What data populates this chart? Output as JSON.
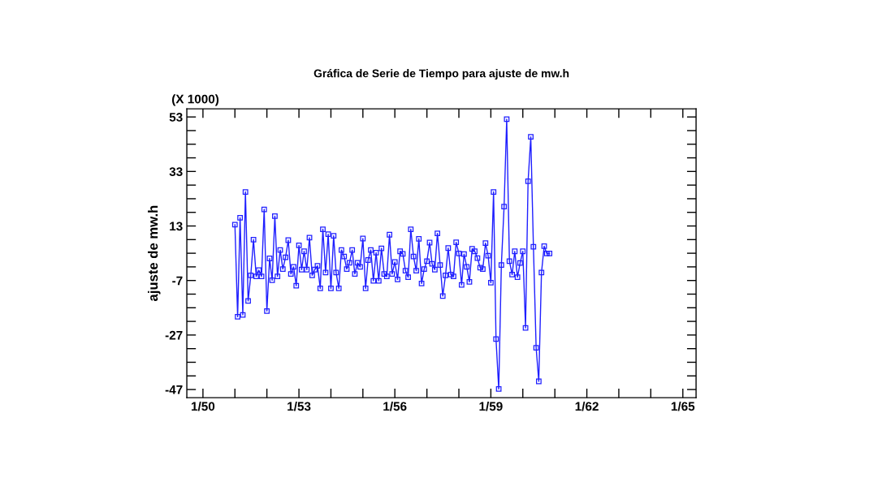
{
  "chart_data": {
    "type": "line",
    "title": "Gráfica de Serie de Tiempo para ajuste de mw.h",
    "ylabel": "ajuste de mw.h",
    "annotations": [
      "(X 1000)"
    ],
    "x": [
      "1951-01",
      "1951-02",
      "1951-03",
      "1951-04",
      "1951-05",
      "1951-06",
      "1951-07",
      "1951-08",
      "1951-09",
      "1951-10",
      "1951-11",
      "1951-12",
      "1952-01",
      "1952-02",
      "1952-03",
      "1952-04",
      "1952-05",
      "1952-06",
      "1952-07",
      "1952-08",
      "1952-09",
      "1952-10",
      "1952-11",
      "1952-12",
      "1953-01",
      "1953-02",
      "1953-03",
      "1953-04",
      "1953-05",
      "1953-06",
      "1953-07",
      "1953-08",
      "1953-09",
      "1953-10",
      "1953-11",
      "1953-12",
      "1954-01",
      "1954-02",
      "1954-03",
      "1954-04",
      "1954-05",
      "1954-06",
      "1954-07",
      "1954-08",
      "1954-09",
      "1954-10",
      "1954-11",
      "1954-12",
      "1955-01",
      "1955-02",
      "1955-03",
      "1955-04",
      "1955-05",
      "1955-06",
      "1955-07",
      "1955-08",
      "1955-09",
      "1955-10",
      "1955-11",
      "1955-12",
      "1956-01",
      "1956-02",
      "1956-03",
      "1956-04",
      "1956-05",
      "1956-06",
      "1956-07",
      "1956-08",
      "1956-09",
      "1956-10",
      "1956-11",
      "1956-12",
      "1957-01",
      "1957-02",
      "1957-03",
      "1957-04",
      "1957-05",
      "1957-06",
      "1957-07",
      "1957-08",
      "1957-09",
      "1957-10",
      "1957-11",
      "1957-12",
      "1958-01",
      "1958-02",
      "1958-03",
      "1958-04",
      "1958-05",
      "1958-06",
      "1958-07",
      "1958-08",
      "1958-09",
      "1958-10",
      "1958-11",
      "1958-12",
      "1959-01",
      "1959-02",
      "1959-03",
      "1959-04",
      "1959-05",
      "1959-06",
      "1959-07",
      "1959-08",
      "1959-09",
      "1959-10",
      "1959-11",
      "1959-12",
      "1960-01",
      "1960-02",
      "1960-03",
      "1960-04",
      "1960-05",
      "1960-06",
      "1960-07",
      "1960-08",
      "1960-09",
      "1960-10",
      "1960-11"
    ],
    "series": [
      {
        "color": "#1f1fff",
        "values": [
          13.5,
          -20.3,
          16,
          -19.6,
          25.5,
          -14.5,
          -5.1,
          8,
          -5.5,
          -3.2,
          -5.5,
          19.1,
          -18.2,
          1.1,
          -6.9,
          16.6,
          -5.5,
          4.2,
          -2.8,
          1.5,
          7.8,
          -4.6,
          -2,
          -8.9,
          5.9,
          -3,
          3.7,
          -3,
          8.7,
          -5.1,
          -3,
          -1.6,
          -9.9,
          11.8,
          -4.1,
          10,
          -9.9,
          9.4,
          -4.1,
          -9.9,
          4.2,
          1.8,
          -2.8,
          -0.5,
          4.2,
          -4.6,
          -0.5,
          -2,
          8.4,
          -9.9,
          0.5,
          4.2,
          -7.1,
          3.2,
          -7.1,
          4.8,
          -4.6,
          -5.5,
          9.8,
          -4.6,
          -0.2,
          -6.6,
          3.7,
          2.8,
          -3.4,
          -5.8,
          11.8,
          1.8,
          -3.4,
          8.3,
          -8.1,
          -2.8,
          0.1,
          6.9,
          -0.9,
          -3,
          10.3,
          -1.3,
          -12.7,
          -5.1,
          4.9,
          -4.8,
          -5.5,
          7,
          2.9,
          -8.6,
          2.7,
          -2,
          -7.5,
          4.6,
          3.7,
          1.2,
          -2.3,
          -2.8,
          6.7,
          2.1,
          -7.8,
          25.5,
          -28.5,
          -46.8,
          -1.3,
          20.1,
          52.2,
          0.1,
          -4.8,
          3.7,
          -5.8,
          -0.6,
          3.7,
          -24.4,
          29.4,
          45.7,
          5.4,
          -31.7,
          -44,
          -4.1,
          5.6,
          2.9,
          2.9
        ]
      }
    ],
    "marker": "square",
    "line_style": "solid",
    "xlim": [
      "1949-07",
      "1965-06"
    ],
    "xticks": [
      {
        "value": "1950-01",
        "label": "1/50"
      },
      {
        "value": "1951-01",
        "label": null
      },
      {
        "value": "1952-01",
        "label": null
      },
      {
        "value": "1953-01",
        "label": "1/53"
      },
      {
        "value": "1954-01",
        "label": null
      },
      {
        "value": "1955-01",
        "label": null
      },
      {
        "value": "1956-01",
        "label": "1/56"
      },
      {
        "value": "1957-01",
        "label": null
      },
      {
        "value": "1958-01",
        "label": null
      },
      {
        "value": "1959-01",
        "label": "1/59"
      },
      {
        "value": "1960-01",
        "label": null
      },
      {
        "value": "1961-01",
        "label": null
      },
      {
        "value": "1962-01",
        "label": "1/62"
      },
      {
        "value": "1963-01",
        "label": null
      },
      {
        "value": "1964-01",
        "label": null
      },
      {
        "value": "1965-01",
        "label": "1/65"
      }
    ],
    "ylim": [
      -50,
      56
    ],
    "yticks": [
      {
        "value": 53,
        "label": "53"
      },
      {
        "value": 48,
        "label": null
      },
      {
        "value": 43,
        "label": null
      },
      {
        "value": 38,
        "label": null
      },
      {
        "value": 33,
        "label": "33"
      },
      {
        "value": 28,
        "label": null
      },
      {
        "value": 23,
        "label": null
      },
      {
        "value": 18,
        "label": null
      },
      {
        "value": 13,
        "label": "13"
      },
      {
        "value": 8,
        "label": null
      },
      {
        "value": 3,
        "label": null
      },
      {
        "value": -2,
        "label": null
      },
      {
        "value": -7,
        "label": "-7"
      },
      {
        "value": -12,
        "label": null
      },
      {
        "value": -17,
        "label": null
      },
      {
        "value": -22,
        "label": null
      },
      {
        "value": -27,
        "label": "-27"
      },
      {
        "value": -32,
        "label": null
      },
      {
        "value": -37,
        "label": null
      },
      {
        "value": -42,
        "label": null
      },
      {
        "value": -47,
        "label": "-47"
      }
    ]
  }
}
